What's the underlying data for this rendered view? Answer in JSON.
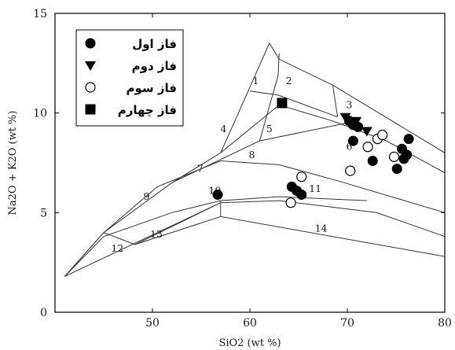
{
  "chart_data": {
    "type": "scatter",
    "title": "",
    "xlabel": "SiO2 (wt %)",
    "ylabel": "Na2O + K2O (wt %)",
    "xlim": [
      40,
      80
    ],
    "ylim": [
      0,
      15
    ],
    "xticks": [
      50,
      60,
      70,
      80
    ],
    "yticks": [
      0,
      5,
      10,
      15
    ],
    "grid": false,
    "legend_position": "top-left",
    "series": [
      {
        "name": "فاز اول",
        "marker": "filled-circle",
        "color": "#000000",
        "points": [
          [
            56.7,
            5.9
          ],
          [
            64.3,
            6.3
          ],
          [
            64.8,
            6.1
          ],
          [
            65.3,
            5.9
          ],
          [
            70.2,
            9.6
          ],
          [
            70.6,
            9.4
          ],
          [
            71.1,
            9.3
          ],
          [
            70.6,
            8.6
          ],
          [
            72.6,
            7.6
          ],
          [
            75.1,
            7.2
          ],
          [
            75.6,
            8.2
          ],
          [
            76.1,
            7.9
          ],
          [
            76.3,
            8.7
          ],
          [
            75.8,
            7.7
          ]
        ]
      },
      {
        "name": "فاز دوم",
        "marker": "filled-triangle-down",
        "color": "#000000",
        "points": [
          [
            69.8,
            9.8
          ],
          [
            70.9,
            9.6
          ],
          [
            72.0,
            9.1
          ]
        ]
      },
      {
        "name": "فاز سوم",
        "marker": "open-circle",
        "color": "#000000",
        "points": [
          [
            65.3,
            6.8
          ],
          [
            64.2,
            5.5
          ],
          [
            70.3,
            7.1
          ],
          [
            72.1,
            8.3
          ],
          [
            73.1,
            8.7
          ],
          [
            73.6,
            8.9
          ],
          [
            74.8,
            7.8
          ]
        ]
      },
      {
        "name": "فاز چهارم",
        "marker": "filled-square",
        "color": "#000000",
        "points": [
          [
            63.3,
            10.5
          ]
        ]
      }
    ],
    "field_labels": [
      {
        "text": "1",
        "x": 60.6,
        "y": 11.6
      },
      {
        "text": "2",
        "x": 64.0,
        "y": 11.6
      },
      {
        "text": "3",
        "x": 70.2,
        "y": 10.4
      },
      {
        "text": "4",
        "x": 57.3,
        "y": 9.2
      },
      {
        "text": "5",
        "x": 62.0,
        "y": 9.2
      },
      {
        "text": "6",
        "x": 70.2,
        "y": 8.3
      },
      {
        "text": "7",
        "x": 54.9,
        "y": 7.2
      },
      {
        "text": "8",
        "x": 60.2,
        "y": 7.9
      },
      {
        "text": "9",
        "x": 49.4,
        "y": 5.8
      },
      {
        "text": "10",
        "x": 56.4,
        "y": 6.1
      },
      {
        "text": "11",
        "x": 66.7,
        "y": 6.2
      },
      {
        "text": "12",
        "x": 46.4,
        "y": 3.2
      },
      {
        "text": "13",
        "x": 50.4,
        "y": 3.9
      },
      {
        "text": "14",
        "x": 67.3,
        "y": 4.2
      }
    ],
    "boundaries": [
      [
        [
          41.0,
          1.8
        ],
        [
          45.0,
          4.0
        ],
        [
          52.0,
          6.5
        ],
        [
          57.0,
          8.0
        ],
        [
          63.0,
          10.4
        ],
        [
          68.5,
          9.6
        ],
        [
          74.0,
          8.6
        ],
        [
          80.0,
          7.0
        ]
      ],
      [
        [
          41.0,
          1.8
        ],
        [
          57.0,
          5.5
        ],
        [
          63.0,
          5.6
        ],
        [
          73.0,
          5.0
        ],
        [
          80.0,
          3.8
        ]
      ],
      [
        [
          41.0,
          1.8
        ],
        [
          45.0,
          3.8
        ],
        [
          52.0,
          5.0
        ],
        [
          57.0,
          5.6
        ],
        [
          63.0,
          5.8
        ],
        [
          72.0,
          5.6
        ]
      ],
      [
        [
          41.0,
          1.8
        ],
        [
          45.0,
          4.0
        ]
      ],
      [
        [
          45.0,
          4.0
        ],
        [
          48.2,
          3.4
        ],
        [
          57.0,
          5.5
        ]
      ],
      [
        [
          48.2,
          3.4
        ],
        [
          57.0,
          4.8
        ],
        [
          80.0,
          2.8
        ]
      ],
      [
        [
          57.0,
          5.6
        ],
        [
          57.0,
          4.8
        ]
      ],
      [
        [
          45.0,
          4.0
        ],
        [
          50.5,
          6.3
        ],
        [
          57.0,
          7.6
        ],
        [
          63.0,
          7.4
        ],
        [
          69.0,
          6.6
        ],
        [
          80.0,
          5.0
        ]
      ],
      [
        [
          52.0,
          6.5
        ],
        [
          61.0,
          8.6
        ],
        [
          70.0,
          9.5
        ]
      ],
      [
        [
          57.0,
          8.0
        ],
        [
          62.0,
          13.5
        ],
        [
          63.0,
          12.7
        ],
        [
          68.5,
          11.4
        ],
        [
          80.0,
          8.0
        ]
      ],
      [
        [
          61.0,
          8.6
        ],
        [
          62.9,
          11.9
        ],
        [
          63.0,
          13.0
        ]
      ],
      [
        [
          60.0,
          11.1
        ],
        [
          62.9,
          10.9
        ],
        [
          69.0,
          9.8
        ]
      ],
      [
        [
          69.0,
          9.8
        ],
        [
          68.5,
          11.4
        ]
      ]
    ]
  }
}
